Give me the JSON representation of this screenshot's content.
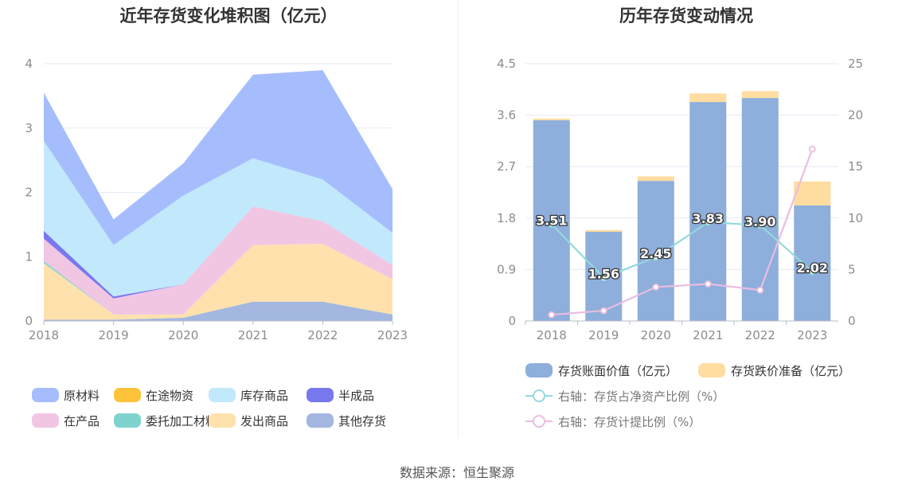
{
  "source": {
    "label": "数据来源：",
    "name": "恒生聚源"
  },
  "chart_data": [
    {
      "type": "area",
      "title": "近年存货变化堆积图（亿元）",
      "stacked": true,
      "x": [
        "2018",
        "2019",
        "2020",
        "2021",
        "2022",
        "2023"
      ],
      "ylim": [
        0,
        4
      ],
      "yticks": [
        "0",
        "1",
        "2",
        "3",
        "4"
      ],
      "grid": true,
      "legend_position": "bottom",
      "series": [
        {
          "name": "其他存货",
          "color": "#a3b7e0",
          "values": [
            0.02,
            0.02,
            0.05,
            0.3,
            0.3,
            0.1
          ]
        },
        {
          "name": "发出商品",
          "color": "#ffe1ae",
          "values": [
            0.88,
            0.08,
            0.05,
            0.88,
            0.9,
            0.55
          ]
        },
        {
          "name": "委托加工材料",
          "color": "#7fd3cf",
          "values": [
            0.03,
            0.0,
            0.0,
            0.0,
            0.0,
            0.0
          ]
        },
        {
          "name": "在产品",
          "color": "#f0c6e3",
          "values": [
            0.35,
            0.25,
            0.47,
            0.6,
            0.35,
            0.22
          ]
        },
        {
          "name": "半成品",
          "color": "#7878ee",
          "values": [
            0.12,
            0.03,
            0.0,
            0.0,
            0.0,
            0.0
          ]
        },
        {
          "name": "库存商品",
          "color": "#c2e8fb",
          "values": [
            1.4,
            0.8,
            1.38,
            0.75,
            0.65,
            0.5
          ]
        },
        {
          "name": "在途物资",
          "color": "#ffc23b",
          "values": [
            0.0,
            0.0,
            0.0,
            0.0,
            0.0,
            0.0
          ]
        },
        {
          "name": "原材料",
          "color": "#a6bdfd",
          "values": [
            0.75,
            0.4,
            0.5,
            1.3,
            1.7,
            0.68
          ]
        }
      ],
      "legend_order": [
        "原材料",
        "在途物资",
        "库存商品",
        "半成品",
        "在产品",
        "委托加工材料",
        "发出商品",
        "其他存货"
      ]
    },
    {
      "type": "bar",
      "title": "历年存货变动情况",
      "stacked": true,
      "categories": [
        "2018",
        "2019",
        "2020",
        "2021",
        "2022",
        "2023"
      ],
      "ylim_left": [
        0,
        4.5
      ],
      "yticks_left": [
        "0",
        "0.9",
        "1.8",
        "2.7",
        "3.6",
        "4.5"
      ],
      "ylim_right": [
        0,
        25
      ],
      "yticks_right": [
        "0",
        "5",
        "10",
        "15",
        "20",
        "25"
      ],
      "grid": true,
      "legend_position": "bottom",
      "series": [
        {
          "name": "存货账面价值（亿元）",
          "color": "#8eaedc",
          "axis": "left",
          "kind": "bar",
          "values": [
            3.51,
            1.56,
            2.45,
            3.83,
            3.9,
            2.02
          ],
          "labels": [
            "3.51",
            "1.56",
            "2.45",
            "3.83",
            "3.90",
            "2.02"
          ]
        },
        {
          "name": "存货跌价准备（亿元）",
          "color": "#ffdca0",
          "axis": "left",
          "kind": "bar",
          "values": [
            0.03,
            0.03,
            0.08,
            0.15,
            0.12,
            0.42
          ]
        },
        {
          "name": "右轴：存货占净资产比例（%）",
          "color": "#93dadc",
          "axis": "right",
          "kind": "line",
          "values": [
            9.4,
            4.2,
            6.2,
            9.6,
            9.3,
            4.8
          ]
        },
        {
          "name": "右轴：存货计提比例（%）",
          "color": "#eabde0",
          "axis": "right",
          "kind": "line",
          "values": [
            0.6,
            1.0,
            3.3,
            3.6,
            3.0,
            16.7
          ]
        }
      ]
    }
  ]
}
